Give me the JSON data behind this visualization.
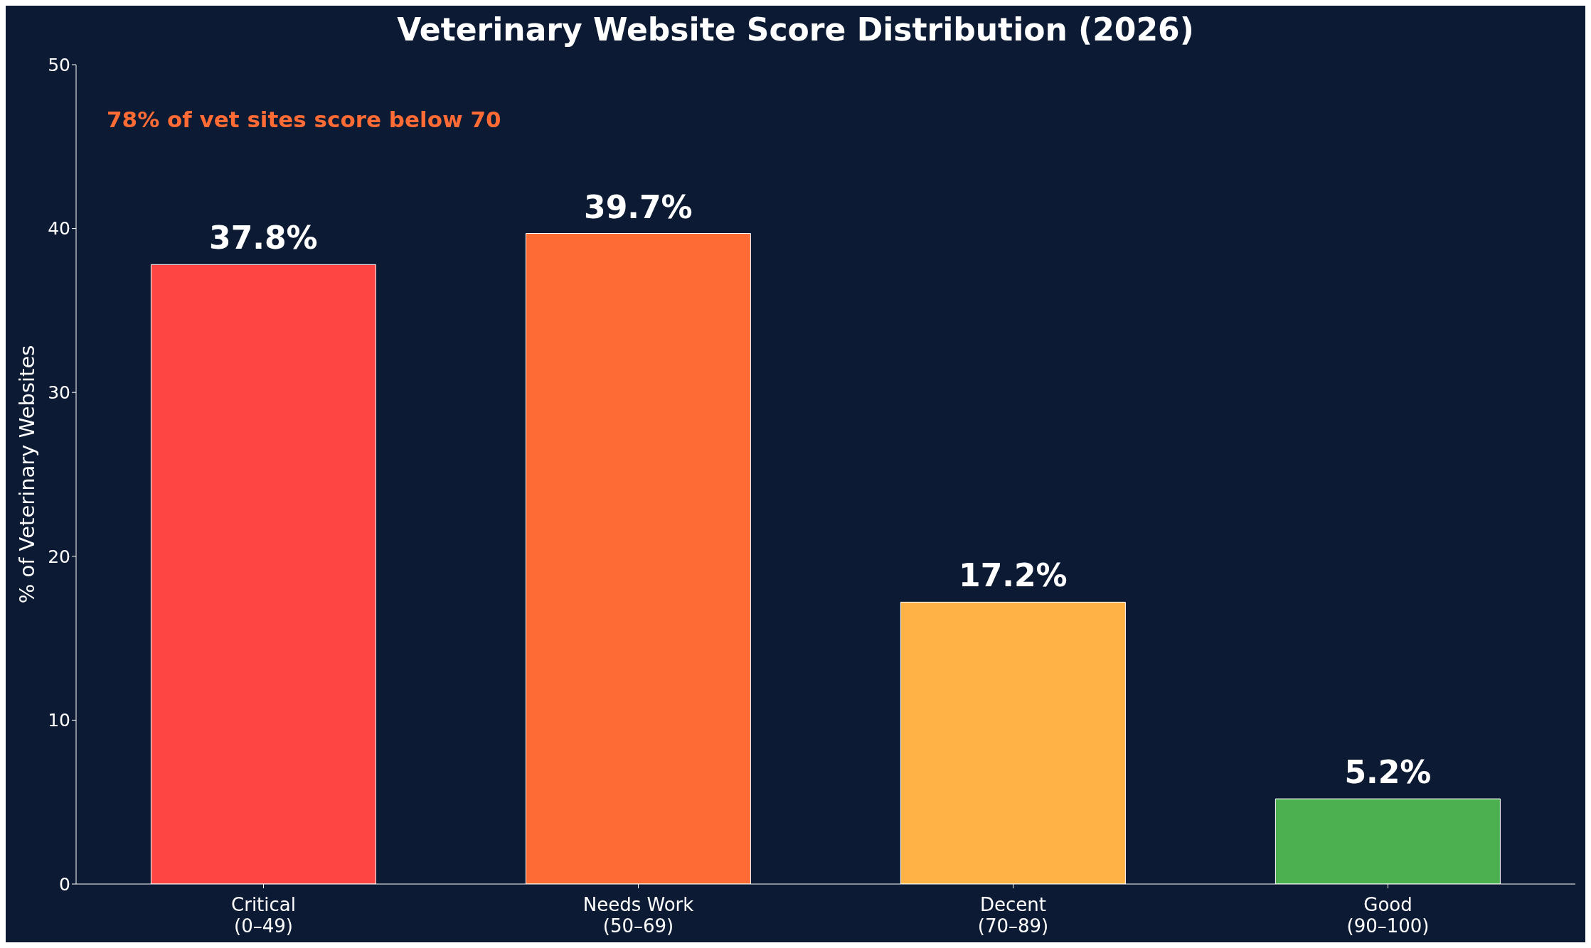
{
  "chart_data": {
    "type": "bar",
    "title": "Veterinary Website Score Distribution (2026)",
    "ylabel": "% of Veterinary Websites",
    "categories": [
      "Critical\n(0–49)",
      "Needs Work\n(50–69)",
      "Decent\n(70–89)",
      "Good\n(90–100)"
    ],
    "values": [
      37.8,
      39.7,
      17.2,
      5.2
    ],
    "colors": [
      "#ff4444",
      "#ff6b35",
      "#ffb347",
      "#4caf50"
    ],
    "value_labels": [
      "37.8%",
      "39.7%",
      "17.2%",
      "5.2%"
    ],
    "ylim": [
      0,
      50
    ],
    "yticks": [
      0,
      10,
      20,
      30,
      40,
      50
    ],
    "grid": false,
    "legend": false,
    "annotations": [
      "78% of vet sites score below 70"
    ]
  }
}
